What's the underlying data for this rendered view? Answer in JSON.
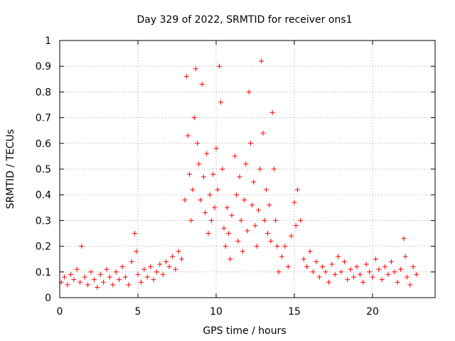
{
  "chart_data": {
    "type": "scatter",
    "title": "Day 329 of 2022, SRMTID for receiver ons1",
    "xlabel": "GPS time / hours",
    "ylabel": "SRMTID / TECUs",
    "xlim": [
      0,
      24
    ],
    "ylim": [
      0,
      1
    ],
    "xticks": [
      0,
      5,
      10,
      15,
      20
    ],
    "xtick_labels": [
      "0",
      "5",
      "10",
      "15",
      "20"
    ],
    "yticks": [
      0,
      0.1,
      0.2,
      0.3,
      0.4,
      0.5,
      0.6,
      0.7,
      0.8,
      0.9,
      1
    ],
    "ytick_labels": [
      "0",
      "0.1",
      "0.2",
      "0.3",
      "0.4",
      "0.5",
      "0.6",
      "0.7",
      "0.8",
      "0.9",
      "1"
    ],
    "grid": true,
    "marker": "+",
    "marker_color": "#ff0000",
    "series": [
      {
        "name": "SRMTID",
        "points": [
          [
            0.1,
            0.06
          ],
          [
            0.3,
            0.08
          ],
          [
            0.5,
            0.05
          ],
          [
            0.7,
            0.09
          ],
          [
            0.9,
            0.07
          ],
          [
            1.1,
            0.11
          ],
          [
            1.3,
            0.06
          ],
          [
            1.4,
            0.2
          ],
          [
            1.6,
            0.08
          ],
          [
            1.8,
            0.05
          ],
          [
            2.0,
            0.1
          ],
          [
            2.2,
            0.07
          ],
          [
            2.4,
            0.04
          ],
          [
            2.6,
            0.09
          ],
          [
            2.8,
            0.06
          ],
          [
            3.0,
            0.11
          ],
          [
            3.2,
            0.08
          ],
          [
            3.4,
            0.05
          ],
          [
            3.6,
            0.1
          ],
          [
            3.8,
            0.07
          ],
          [
            4.0,
            0.12
          ],
          [
            4.2,
            0.08
          ],
          [
            4.4,
            0.05
          ],
          [
            4.6,
            0.14
          ],
          [
            4.8,
            0.25
          ],
          [
            4.9,
            0.18
          ],
          [
            5.0,
            0.09
          ],
          [
            5.2,
            0.06
          ],
          [
            5.4,
            0.11
          ],
          [
            5.6,
            0.08
          ],
          [
            5.8,
            0.12
          ],
          [
            6.0,
            0.07
          ],
          [
            6.2,
            0.1
          ],
          [
            6.4,
            0.13
          ],
          [
            6.6,
            0.09
          ],
          [
            6.8,
            0.14
          ],
          [
            7.0,
            0.12
          ],
          [
            7.2,
            0.16
          ],
          [
            7.4,
            0.11
          ],
          [
            7.6,
            0.18
          ],
          [
            7.8,
            0.15
          ],
          [
            8.0,
            0.38
          ],
          [
            8.1,
            0.86
          ],
          [
            8.2,
            0.63
          ],
          [
            8.3,
            0.48
          ],
          [
            8.4,
            0.3
          ],
          [
            8.5,
            0.42
          ],
          [
            8.6,
            0.7
          ],
          [
            8.7,
            0.89
          ],
          [
            8.8,
            0.6
          ],
          [
            8.9,
            0.52
          ],
          [
            9.0,
            0.38
          ],
          [
            9.1,
            0.83
          ],
          [
            9.2,
            0.47
          ],
          [
            9.3,
            0.33
          ],
          [
            9.4,
            0.56
          ],
          [
            9.5,
            0.25
          ],
          [
            9.6,
            0.4
          ],
          [
            9.7,
            0.3
          ],
          [
            9.8,
            0.48
          ],
          [
            9.9,
            0.35
          ],
          [
            10.0,
            0.58
          ],
          [
            10.1,
            0.42
          ],
          [
            10.2,
            0.9
          ],
          [
            10.3,
            0.76
          ],
          [
            10.4,
            0.5
          ],
          [
            10.5,
            0.27
          ],
          [
            10.6,
            0.2
          ],
          [
            10.7,
            0.35
          ],
          [
            10.8,
            0.25
          ],
          [
            10.9,
            0.15
          ],
          [
            11.0,
            0.32
          ],
          [
            11.2,
            0.55
          ],
          [
            11.3,
            0.4
          ],
          [
            11.4,
            0.22
          ],
          [
            11.5,
            0.47
          ],
          [
            11.6,
            0.3
          ],
          [
            11.7,
            0.18
          ],
          [
            11.8,
            0.38
          ],
          [
            11.9,
            0.52
          ],
          [
            12.0,
            0.26
          ],
          [
            12.1,
            0.8
          ],
          [
            12.2,
            0.6
          ],
          [
            12.3,
            0.36
          ],
          [
            12.4,
            0.45
          ],
          [
            12.5,
            0.28
          ],
          [
            12.6,
            0.2
          ],
          [
            12.7,
            0.34
          ],
          [
            12.8,
            0.5
          ],
          [
            12.9,
            0.92
          ],
          [
            13.0,
            0.64
          ],
          [
            13.1,
            0.3
          ],
          [
            13.2,
            0.42
          ],
          [
            13.3,
            0.25
          ],
          [
            13.4,
            0.36
          ],
          [
            13.5,
            0.22
          ],
          [
            13.6,
            0.72
          ],
          [
            13.7,
            0.5
          ],
          [
            13.8,
            0.3
          ],
          [
            13.9,
            0.2
          ],
          [
            14.0,
            0.1
          ],
          [
            14.2,
            0.16
          ],
          [
            14.4,
            0.2
          ],
          [
            14.6,
            0.12
          ],
          [
            14.8,
            0.24
          ],
          [
            15.0,
            0.37
          ],
          [
            15.1,
            0.28
          ],
          [
            15.2,
            0.42
          ],
          [
            15.4,
            0.3
          ],
          [
            15.6,
            0.15
          ],
          [
            15.8,
            0.12
          ],
          [
            16.0,
            0.18
          ],
          [
            16.2,
            0.1
          ],
          [
            16.4,
            0.14
          ],
          [
            16.6,
            0.08
          ],
          [
            16.8,
            0.12
          ],
          [
            17.0,
            0.1
          ],
          [
            17.2,
            0.06
          ],
          [
            17.4,
            0.13
          ],
          [
            17.6,
            0.09
          ],
          [
            17.8,
            0.16
          ],
          [
            18.0,
            0.1
          ],
          [
            18.2,
            0.14
          ],
          [
            18.4,
            0.07
          ],
          [
            18.6,
            0.11
          ],
          [
            18.8,
            0.08
          ],
          [
            19.0,
            0.12
          ],
          [
            19.2,
            0.09
          ],
          [
            19.4,
            0.06
          ],
          [
            19.6,
            0.13
          ],
          [
            19.8,
            0.1
          ],
          [
            20.0,
            0.08
          ],
          [
            20.2,
            0.15
          ],
          [
            20.4,
            0.11
          ],
          [
            20.6,
            0.07
          ],
          [
            20.8,
            0.12
          ],
          [
            21.0,
            0.09
          ],
          [
            21.2,
            0.14
          ],
          [
            21.4,
            0.1
          ],
          [
            21.6,
            0.06
          ],
          [
            21.8,
            0.11
          ],
          [
            22.0,
            0.23
          ],
          [
            22.1,
            0.16
          ],
          [
            22.2,
            0.08
          ],
          [
            22.4,
            0.05
          ],
          [
            22.6,
            0.12
          ],
          [
            22.8,
            0.09
          ]
        ]
      }
    ]
  }
}
